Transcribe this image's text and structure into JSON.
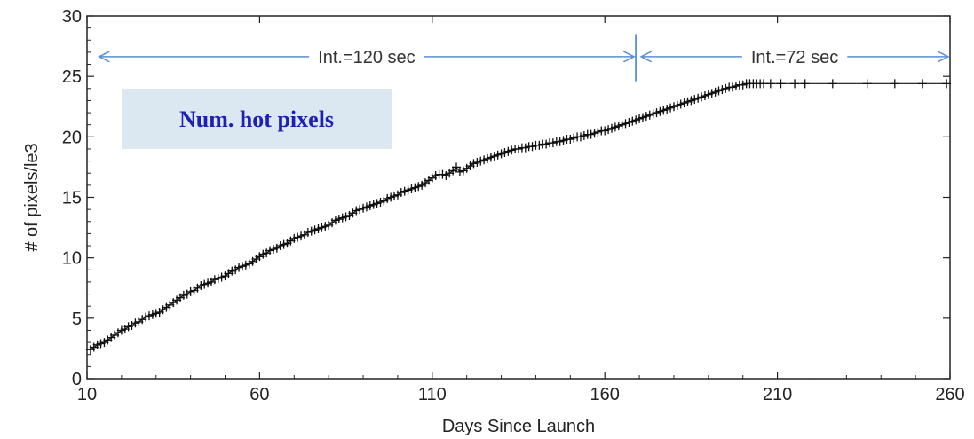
{
  "chart_data": {
    "type": "scatter",
    "title": "",
    "xlabel": "Days Since Launch",
    "ylabel": "# of pixels/le3",
    "xlim": [
      10,
      260
    ],
    "ylim": [
      0,
      30
    ],
    "x_ticks": [
      10,
      60,
      110,
      160,
      210,
      260
    ],
    "y_ticks": [
      0,
      5,
      10,
      15,
      20,
      25,
      30
    ],
    "grid": false,
    "marker": "+",
    "colors": {
      "data": "#111111",
      "annotation_arrow": "#5b8fd4",
      "box_fill": "#dbe8f2",
      "box_text": "#1f1fb4"
    },
    "annotations": [
      {
        "text": "Int.=120 sec",
        "x_start": 13,
        "x_end": 169,
        "y": 27
      },
      {
        "text": "Int.=72 sec",
        "x_start": 170,
        "x_end": 260,
        "y": 27
      }
    ],
    "boundary_x": 169,
    "box_label": "Num. hot pixels",
    "series": [
      {
        "x": [
          11,
          12,
          13,
          14,
          15,
          16,
          17,
          18,
          19,
          20,
          21,
          22,
          23,
          24,
          25,
          26,
          27,
          28,
          29,
          30,
          31,
          32,
          33,
          34,
          35,
          36,
          37,
          38,
          39,
          40,
          41,
          42,
          43,
          44,
          45,
          46,
          47,
          48,
          49,
          50,
          51,
          52,
          53,
          54,
          55,
          56,
          57,
          58,
          59,
          60,
          61,
          62,
          63,
          64,
          65,
          66,
          67,
          68,
          69,
          70,
          71,
          72,
          73,
          74,
          75,
          76,
          77,
          78,
          79,
          80,
          81,
          82,
          83,
          84,
          85,
          86,
          87,
          88,
          89,
          90,
          91,
          92,
          93,
          94,
          95,
          96,
          97,
          98,
          99,
          100,
          101,
          102,
          103,
          104,
          105,
          106,
          107,
          108,
          109,
          110,
          111,
          112,
          113,
          114,
          115,
          116,
          117,
          118,
          119,
          120,
          121,
          122,
          123,
          124,
          125,
          126,
          127,
          128,
          129,
          130,
          131,
          132,
          133,
          134,
          135,
          136,
          137,
          138,
          139,
          140,
          141,
          142,
          143,
          144,
          145,
          146,
          147,
          148,
          149,
          150,
          151,
          152,
          153,
          154,
          155,
          156,
          157,
          158,
          159,
          160,
          161,
          162,
          163,
          164,
          165,
          166,
          167,
          168,
          169,
          170,
          171,
          172,
          173,
          174,
          175,
          176,
          177,
          178,
          179,
          180,
          181,
          182,
          183,
          184,
          185,
          186,
          187,
          188,
          189,
          190,
          191,
          192,
          193,
          194,
          195,
          196,
          197,
          198,
          199,
          200,
          201,
          202,
          203,
          204,
          205,
          206,
          208,
          211,
          215,
          218,
          226,
          236,
          244,
          252,
          259
        ],
        "y": [
          2.4,
          2.6,
          2.8,
          2.9,
          3.0,
          3.2,
          3.4,
          3.6,
          3.8,
          4.0,
          4.1,
          4.3,
          4.4,
          4.6,
          4.7,
          4.9,
          5.1,
          5.2,
          5.3,
          5.4,
          5.5,
          5.7,
          5.9,
          6.1,
          6.3,
          6.5,
          6.7,
          6.9,
          7.0,
          7.2,
          7.3,
          7.5,
          7.7,
          7.8,
          7.9,
          8.0,
          8.2,
          8.3,
          8.4,
          8.5,
          8.7,
          8.9,
          9.0,
          9.2,
          9.3,
          9.4,
          9.5,
          9.7,
          9.9,
          10.1,
          10.3,
          10.4,
          10.6,
          10.7,
          10.8,
          11.0,
          11.1,
          11.2,
          11.4,
          11.6,
          11.7,
          11.8,
          11.9,
          12.1,
          12.2,
          12.3,
          12.4,
          12.5,
          12.6,
          12.7,
          12.9,
          13.1,
          13.2,
          13.3,
          13.4,
          13.5,
          13.7,
          13.9,
          14.0,
          14.1,
          14.2,
          14.3,
          14.4,
          14.5,
          14.6,
          14.7,
          14.9,
          15.0,
          15.1,
          15.2,
          15.4,
          15.5,
          15.6,
          15.7,
          15.8,
          15.9,
          16.0,
          16.2,
          16.4,
          16.6,
          16.8,
          16.9,
          16.9,
          16.8,
          17.0,
          17.2,
          17.5,
          17.1,
          17.2,
          17.4,
          17.6,
          17.8,
          17.9,
          18.0,
          18.1,
          18.2,
          18.3,
          18.4,
          18.5,
          18.6,
          18.7,
          18.8,
          18.9,
          19.0,
          19.0,
          19.1,
          19.1,
          19.2,
          19.2,
          19.3,
          19.3,
          19.4,
          19.4,
          19.5,
          19.5,
          19.6,
          19.6,
          19.7,
          19.8,
          19.8,
          19.9,
          20.0,
          20.0,
          20.1,
          20.2,
          20.2,
          20.3,
          20.4,
          20.5,
          20.5,
          20.6,
          20.7,
          20.8,
          20.9,
          21.0,
          21.1,
          21.2,
          21.3,
          21.4,
          21.5,
          21.6,
          21.7,
          21.8,
          21.9,
          22.0,
          22.1,
          22.2,
          22.3,
          22.4,
          22.5,
          22.6,
          22.7,
          22.8,
          22.9,
          23.0,
          23.1,
          23.2,
          23.3,
          23.4,
          23.5,
          23.6,
          23.7,
          23.8,
          23.9,
          24.0,
          24.1,
          24.1,
          24.2,
          24.3,
          24.3,
          24.4,
          24.4,
          24.4,
          24.4,
          24.4,
          24.4,
          24.4,
          24.4,
          24.4,
          24.4,
          24.4,
          24.4,
          24.4,
          24.4,
          24.4
        ]
      }
    ]
  }
}
